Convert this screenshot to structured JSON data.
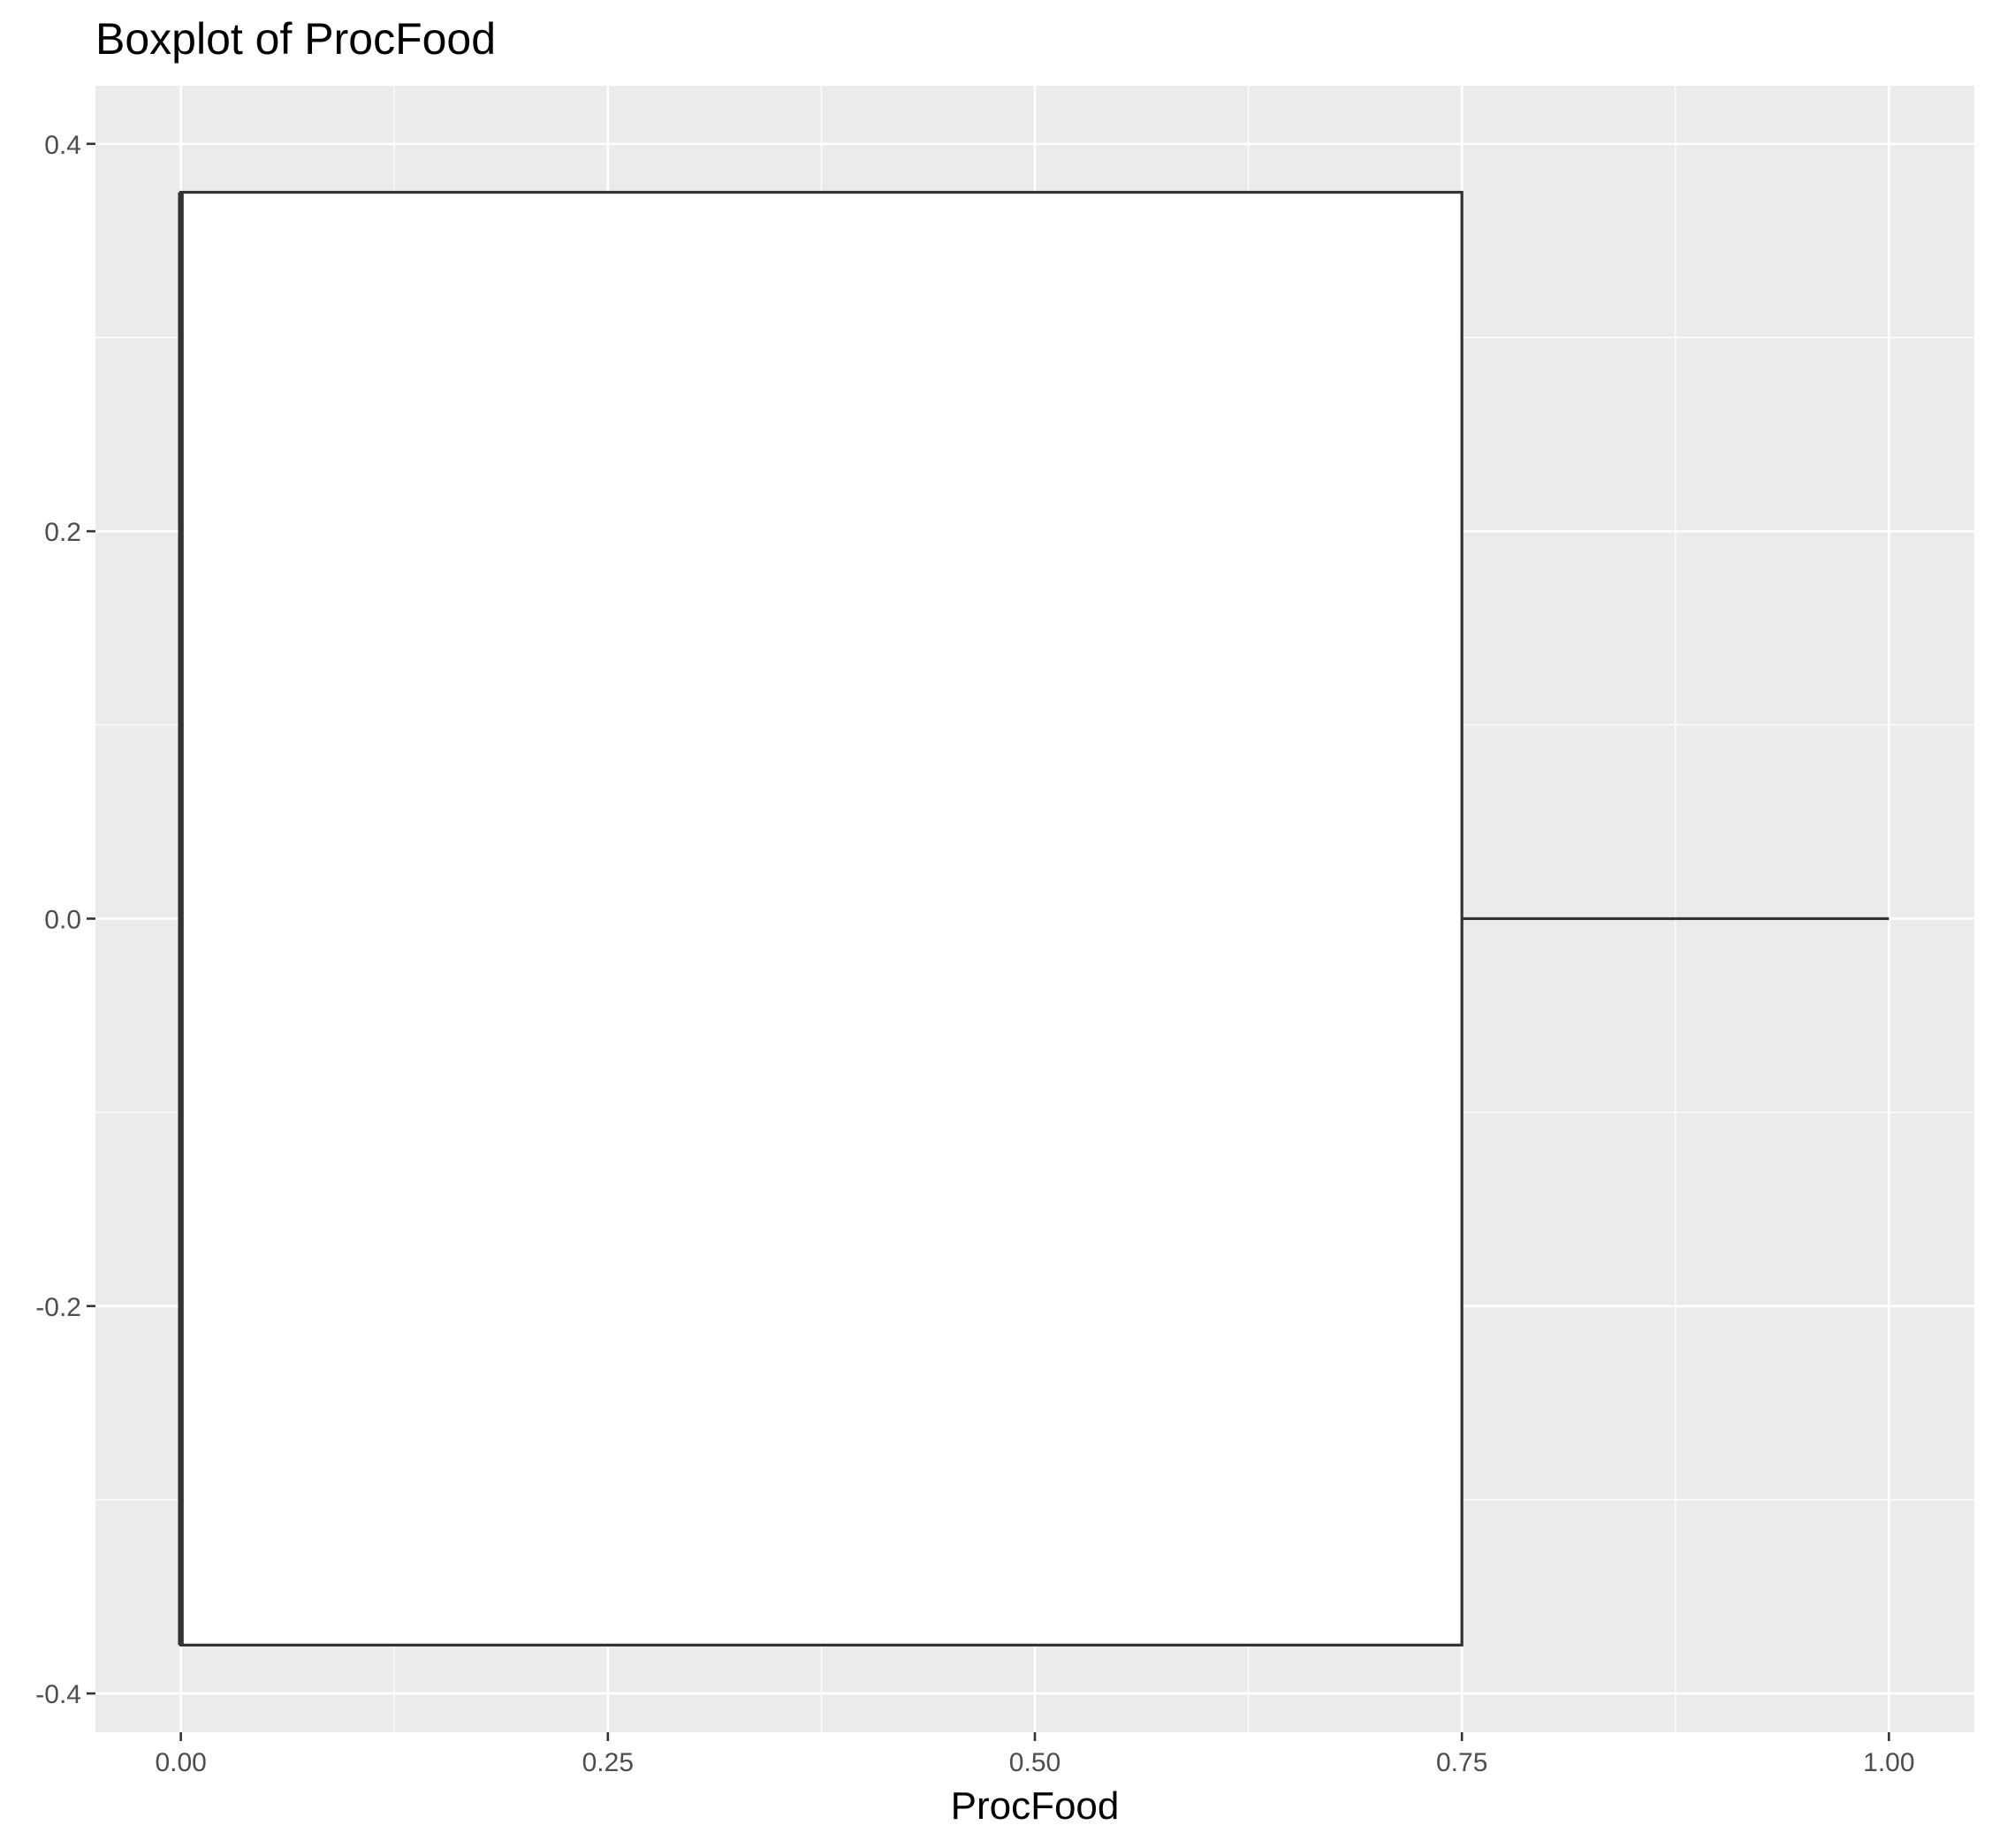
{
  "chart_data": {
    "type": "boxplot",
    "title": "Boxplot of ProcFood",
    "xlabel": "ProcFood",
    "ylabel": "",
    "orientation": "horizontal",
    "xlim": [
      -0.05,
      1.05
    ],
    "ylim": [
      -0.42,
      0.43
    ],
    "x_ticks": [
      0.0,
      0.25,
      0.5,
      0.75,
      1.0
    ],
    "x_tick_labels": [
      "0.00",
      "0.25",
      "0.50",
      "0.75",
      "1.00"
    ],
    "y_ticks": [
      -0.4,
      -0.2,
      0.0,
      0.2,
      0.4
    ],
    "y_tick_labels": [
      "-0.4",
      "-0.2",
      "0.0",
      "0.2",
      "0.4"
    ],
    "grid": true,
    "box": {
      "min": 0.0,
      "q1": 0.0,
      "median": 0.0,
      "q3": 0.75,
      "max": 1.0,
      "width": 0.75
    },
    "colors": {
      "panel_background": "#ebebeb",
      "grid_line": "#ffffff",
      "box_fill": "#ffffff",
      "box_stroke": "#333333",
      "tick_label": "#4d4d4d"
    }
  }
}
